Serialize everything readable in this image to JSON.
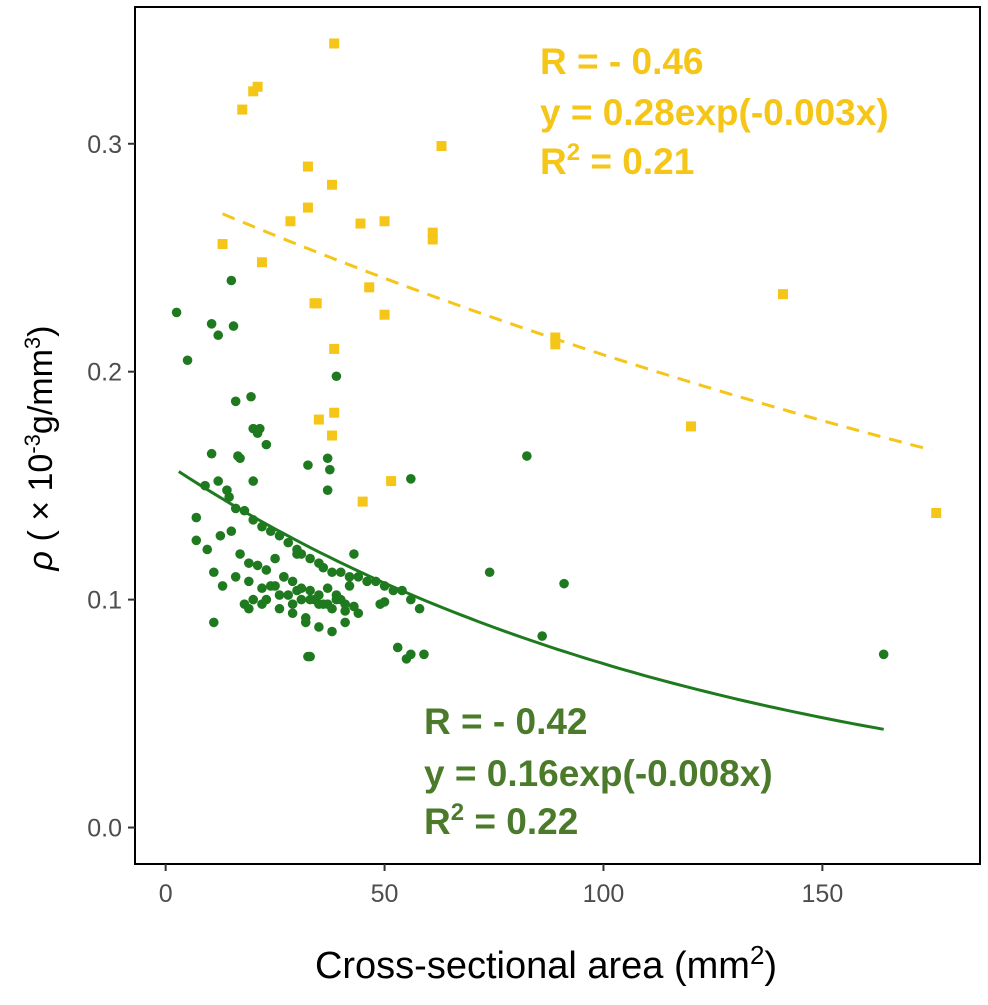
{
  "chart_data": {
    "type": "scatter",
    "title": "",
    "xlabel": "Cross-sectional area (mm",
    "xlabel_sup": "2",
    "xlabel_end": ")",
    "ylabel_symbol": "ρ",
    "ylabel_pre": " ( × 10",
    "ylabel_sup1": "-3",
    "ylabel_mid": "g/mm",
    "ylabel_sup2": "3",
    "ylabel_end": ")",
    "xlim": [
      -7,
      186
    ],
    "ylim": [
      -0.016,
      0.36
    ],
    "x_ticks": [
      0,
      50,
      100,
      150
    ],
    "x_tick_labels": [
      "0",
      "50",
      "100",
      "150"
    ],
    "y_ticks": [
      0.0,
      0.1,
      0.2,
      0.3
    ],
    "y_tick_labels": [
      "0.0",
      "0.1",
      "0.2",
      "0.3"
    ],
    "grid": false,
    "series": [
      {
        "name": "yellow",
        "color": "#f5c518",
        "text_color": "#f5c518",
        "marker": "square",
        "fit": {
          "a": 0.28,
          "b": -0.003,
          "x_range": [
            13,
            175
          ],
          "style": "dashed"
        },
        "annotation": {
          "r_line": "R = - 0.46",
          "eq_line": "y = 0.28exp(-0.003x)",
          "r2_prefix": "R",
          "r2_sup": "2",
          "r2_suffix": " = 0.21"
        },
        "x": [
          38.5,
          21,
          20,
          17.5,
          63,
          32.5,
          38,
          28.5,
          32.5,
          44.5,
          50,
          61,
          61,
          13,
          22,
          46.5,
          34,
          34.5,
          50,
          38.5,
          89,
          89,
          141,
          35,
          38,
          38.5,
          120,
          51.5,
          45,
          176
        ],
        "y": [
          0.344,
          0.325,
          0.323,
          0.315,
          0.299,
          0.29,
          0.282,
          0.266,
          0.272,
          0.265,
          0.266,
          0.261,
          0.258,
          0.256,
          0.248,
          0.237,
          0.23,
          0.23,
          0.225,
          0.21,
          0.215,
          0.212,
          0.234,
          0.179,
          0.172,
          0.182,
          0.176,
          0.152,
          0.143,
          0.138
        ]
      },
      {
        "name": "green",
        "color": "#1f7a1f",
        "text_color": "#4a7a2a",
        "marker": "circle",
        "fit": {
          "a": 0.16,
          "b": -0.008,
          "x_range": [
            3,
            164
          ],
          "style": "solid"
        },
        "annotation": {
          "r_line": "R = - 0.42",
          "eq_line": "y = 0.16exp(-0.008x)",
          "r2_prefix": "R",
          "r2_sup": "2",
          "r2_suffix": " = 0.22"
        },
        "x": [
          2.5,
          5,
          15,
          10.5,
          12,
          15.5,
          39,
          16,
          19.5,
          20,
          21,
          21.5,
          23,
          10.5,
          16.5,
          32.5,
          37,
          37.5,
          82.5,
          56,
          74,
          7,
          9,
          12,
          14,
          14.5,
          16,
          18,
          20,
          22,
          24,
          26,
          28,
          30,
          31,
          33,
          35,
          36,
          38,
          40,
          42,
          44,
          46,
          48,
          50,
          52,
          54,
          56,
          58,
          7,
          9.5,
          12.5,
          15,
          17,
          19,
          21,
          23,
          25,
          27,
          29,
          31,
          33,
          35,
          37,
          39,
          41,
          43,
          11,
          13,
          16,
          19,
          22,
          25,
          28,
          31,
          34,
          37,
          40,
          23,
          26,
          29,
          32,
          35,
          38,
          41,
          44,
          18,
          20,
          24,
          27,
          30,
          33,
          36,
          39,
          42,
          19,
          22,
          26,
          29,
          32,
          35,
          38,
          41,
          49,
          50,
          11,
          30,
          33,
          37,
          43,
          53,
          55,
          56,
          59,
          32.5,
          86,
          91,
          164,
          17,
          20
        ],
        "y": [
          0.226,
          0.205,
          0.24,
          0.221,
          0.216,
          0.22,
          0.198,
          0.187,
          0.189,
          0.175,
          0.173,
          0.175,
          0.168,
          0.164,
          0.163,
          0.159,
          0.162,
          0.157,
          0.163,
          0.153,
          0.112,
          0.136,
          0.15,
          0.152,
          0.148,
          0.145,
          0.14,
          0.139,
          0.135,
          0.132,
          0.13,
          0.128,
          0.125,
          0.122,
          0.12,
          0.118,
          0.116,
          0.114,
          0.112,
          0.112,
          0.11,
          0.11,
          0.108,
          0.108,
          0.106,
          0.104,
          0.104,
          0.1,
          0.096,
          0.126,
          0.122,
          0.128,
          0.13,
          0.12,
          0.116,
          0.115,
          0.113,
          0.118,
          0.11,
          0.108,
          0.105,
          0.104,
          0.102,
          0.105,
          0.1,
          0.098,
          0.12,
          0.112,
          0.106,
          0.11,
          0.108,
          0.105,
          0.106,
          0.102,
          0.1,
          0.1,
          0.098,
          0.1,
          0.1,
          0.096,
          0.094,
          0.092,
          0.098,
          0.096,
          0.095,
          0.094,
          0.098,
          0.1,
          0.106,
          0.11,
          0.104,
          0.1,
          0.098,
          0.102,
          0.106,
          0.096,
          0.098,
          0.102,
          0.098,
          0.09,
          0.088,
          0.086,
          0.09,
          0.098,
          0.099,
          0.09,
          0.12,
          0.075,
          0.148,
          0.097,
          0.079,
          0.074,
          0.076,
          0.076,
          0.075,
          0.084,
          0.107,
          0.076,
          0.162,
          0.152
        ]
      }
    ]
  }
}
